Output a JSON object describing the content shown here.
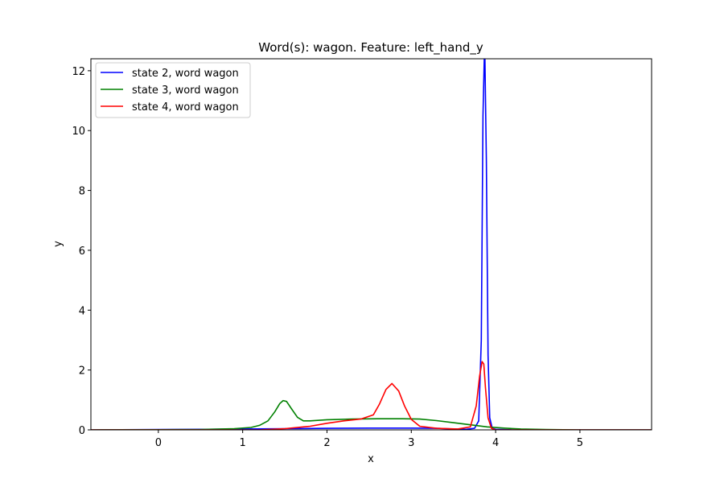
{
  "chart_data": {
    "type": "line",
    "title": "Word(s): wagon. Feature: left_hand_y",
    "xlabel": "x",
    "ylabel": "y",
    "xlim": [
      -0.8,
      5.85
    ],
    "ylim": [
      0,
      12.4
    ],
    "xticks": [
      0,
      1,
      2,
      3,
      4,
      5
    ],
    "yticks": [
      0,
      2,
      4,
      6,
      8,
      10,
      12
    ],
    "grid": false,
    "legend_position": "upper-left",
    "series": [
      {
        "name": "state 2, word wagon",
        "color": "#0000ff",
        "x": [
          -0.8,
          0.0,
          0.5,
          1.0,
          1.5,
          2.0,
          2.5,
          3.0,
          3.3,
          3.5,
          3.65,
          3.75,
          3.8,
          3.83,
          3.85,
          3.87,
          3.89,
          3.91,
          3.93,
          3.96,
          4.0,
          4.2,
          4.5,
          5.0,
          5.85
        ],
        "y": [
          0.0,
          0.01,
          0.02,
          0.03,
          0.04,
          0.05,
          0.06,
          0.06,
          0.05,
          0.03,
          0.02,
          0.05,
          0.3,
          3.0,
          10.5,
          13.0,
          9.0,
          2.5,
          0.4,
          0.05,
          0.02,
          0.0,
          0.0,
          0.0,
          0.0
        ]
      },
      {
        "name": "state 3, word wagon",
        "color": "#008000",
        "x": [
          -0.8,
          0.0,
          0.5,
          0.9,
          1.1,
          1.2,
          1.3,
          1.38,
          1.44,
          1.48,
          1.52,
          1.58,
          1.65,
          1.72,
          1.8,
          2.0,
          2.3,
          2.6,
          2.9,
          3.1,
          3.3,
          3.5,
          3.7,
          3.9,
          4.1,
          4.3,
          4.6,
          5.0,
          5.85
        ],
        "y": [
          0.0,
          0.005,
          0.01,
          0.04,
          0.08,
          0.15,
          0.3,
          0.6,
          0.88,
          0.98,
          0.95,
          0.7,
          0.42,
          0.3,
          0.3,
          0.34,
          0.36,
          0.37,
          0.37,
          0.36,
          0.31,
          0.24,
          0.17,
          0.1,
          0.06,
          0.03,
          0.01,
          0.0,
          0.0
        ]
      },
      {
        "name": "state 4, word wagon",
        "color": "#ff0000",
        "x": [
          -0.8,
          1.2,
          1.5,
          1.8,
          2.0,
          2.2,
          2.4,
          2.55,
          2.62,
          2.7,
          2.77,
          2.85,
          2.92,
          3.0,
          3.1,
          3.3,
          3.55,
          3.7,
          3.77,
          3.81,
          3.84,
          3.86,
          3.88,
          3.91,
          3.95,
          4.0,
          4.2,
          5.85
        ],
        "y": [
          0.0,
          0.0,
          0.04,
          0.12,
          0.22,
          0.3,
          0.36,
          0.5,
          0.85,
          1.35,
          1.55,
          1.3,
          0.8,
          0.35,
          0.12,
          0.05,
          0.03,
          0.1,
          0.8,
          1.8,
          2.28,
          2.2,
          1.4,
          0.4,
          0.05,
          0.0,
          0.0,
          0.0
        ]
      }
    ]
  }
}
